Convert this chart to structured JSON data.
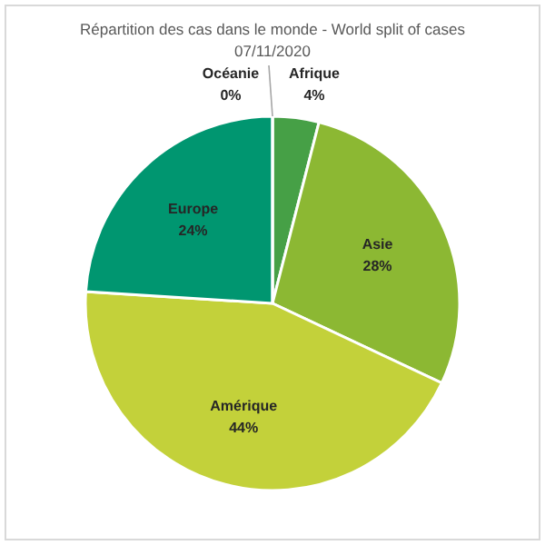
{
  "chart_data": {
    "type": "pie",
    "title": "Répartition des cas dans le monde - World split of cases",
    "subtitle": "07/11/2020",
    "categories": [
      "Afrique",
      "Asie",
      "Amérique",
      "Europe",
      "Océanie"
    ],
    "values": [
      4,
      28,
      44,
      24,
      0
    ],
    "colors": [
      "#46a046",
      "#8cb833",
      "#c3d13a",
      "#009670",
      "#2e7d4a"
    ],
    "value_labels": [
      "4%",
      "28%",
      "44%",
      "24%",
      "0%"
    ],
    "legend": false
  }
}
